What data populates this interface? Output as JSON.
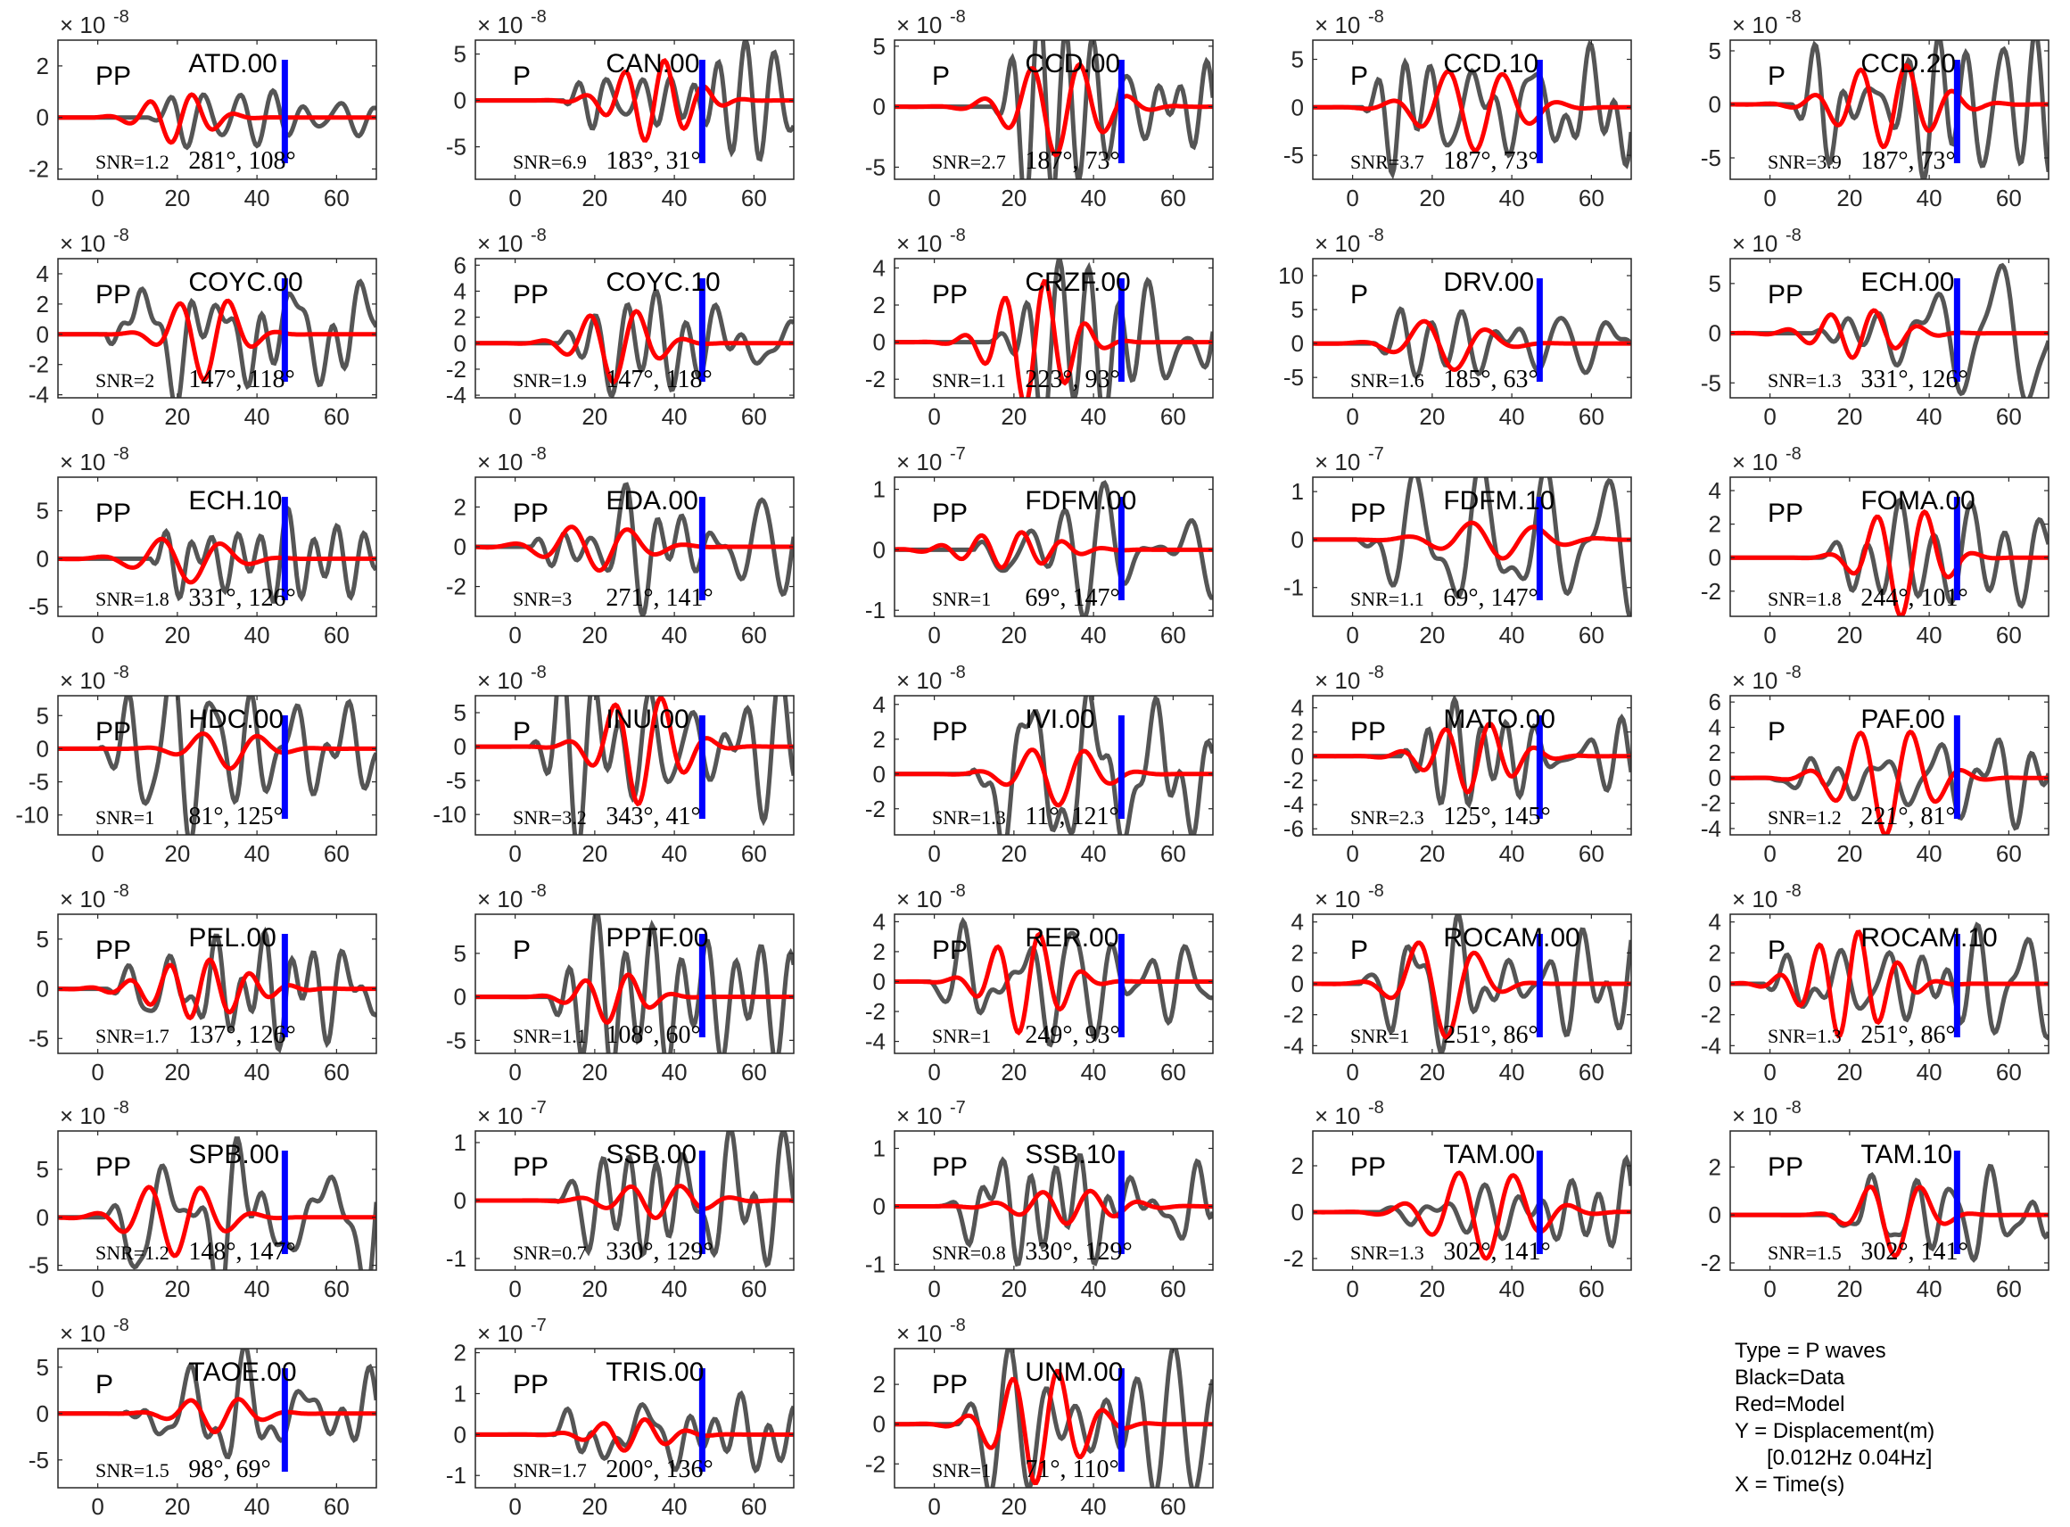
{
  "legend": {
    "type_line": "Type = P waves",
    "black_line": "Black=Data",
    "red_line": "Red=Model",
    "y_line": "Y = Displacement(m)",
    "band_line": "[0.012Hz 0.04Hz]",
    "x_line": "X = Time(s)"
  },
  "colors": {
    "data": "#555555",
    "model": "#ff0000",
    "marker": "#0000ff",
    "axes": "#262626"
  },
  "chart_data": [
    {
      "type": "line",
      "station": "ATD.00",
      "phase": "PP",
      "snr": "SNR=1.2",
      "angles": "281°, 108°",
      "exponent": "-8",
      "yticks": [
        -2,
        0,
        2
      ],
      "ylim": [
        -2.4,
        3.0
      ],
      "xlim": [
        -10,
        70
      ],
      "xticks": [
        0,
        20,
        40,
        60
      ],
      "marker_x": 47,
      "seed": 11,
      "model_amp": 1.0,
      "data_amp": 1.0
    },
    {
      "type": "line",
      "station": "CAN.00",
      "phase": "P",
      "snr": "SNR=6.9",
      "angles": "183°, 31°",
      "exponent": "-8",
      "yticks": [
        -5,
        0,
        5
      ],
      "ylim": [
        -8.5,
        6.5
      ],
      "xlim": [
        -10,
        70
      ],
      "xticks": [
        0,
        20,
        40,
        60
      ],
      "marker_x": 47,
      "seed": 23,
      "model_amp": 4.5,
      "data_amp": 6.5
    },
    {
      "type": "line",
      "station": "CCD.00",
      "phase": "P",
      "snr": "SNR=2.7",
      "angles": "187°, 73°",
      "exponent": "-8",
      "yticks": [
        -5,
        0,
        5
      ],
      "ylim": [
        -6.0,
        5.5
      ],
      "xlim": [
        -10,
        70
      ],
      "xticks": [
        0,
        20,
        40,
        60
      ],
      "marker_x": 47,
      "seed": 37,
      "model_amp": 4.0,
      "data_amp": 5.0
    },
    {
      "type": "line",
      "station": "CCD.10",
      "phase": "P",
      "snr": "SNR=3.7",
      "angles": "187°, 73°",
      "exponent": "-8",
      "yticks": [
        -5,
        0,
        5
      ],
      "ylim": [
        -7.5,
        7.0
      ],
      "xlim": [
        -10,
        70
      ],
      "xticks": [
        0,
        20,
        40,
        60
      ],
      "marker_x": 47,
      "seed": 41,
      "model_amp": 4.5,
      "data_amp": 5.5
    },
    {
      "type": "line",
      "station": "CCD.20",
      "phase": "P",
      "snr": "SNR=3.9",
      "angles": "187°, 73°",
      "exponent": "-8",
      "yticks": [
        -5,
        0,
        5
      ],
      "ylim": [
        -7.0,
        6.0
      ],
      "xlim": [
        -10,
        70
      ],
      "xticks": [
        0,
        20,
        40,
        60
      ],
      "marker_x": 47,
      "seed": 43,
      "model_amp": 4.0,
      "data_amp": 5.0
    },
    {
      "type": "line",
      "station": "COYC.00",
      "phase": "PP",
      "snr": "SNR=2",
      "angles": "147°, 118°",
      "exponent": "-8",
      "yticks": [
        -4,
        -2,
        0,
        2,
        4
      ],
      "ylim": [
        -4.2,
        5.0
      ],
      "xlim": [
        -10,
        70
      ],
      "xticks": [
        0,
        20,
        40,
        60
      ],
      "marker_x": 47,
      "seed": 53,
      "model_amp": 3.0,
      "data_amp": 4.0
    },
    {
      "type": "line",
      "station": "COYC.10",
      "phase": "PP",
      "snr": "SNR=1.9",
      "angles": "147°, 118°",
      "exponent": "-8",
      "yticks": [
        -4,
        -2,
        0,
        2,
        4,
        6
      ],
      "ylim": [
        -4.2,
        6.5
      ],
      "xlim": [
        -10,
        70
      ],
      "xticks": [
        0,
        20,
        40,
        60
      ],
      "marker_x": 47,
      "seed": 59,
      "model_amp": 3.0,
      "data_amp": 4.0
    },
    {
      "type": "line",
      "station": "CRZF.00",
      "phase": "PP",
      "snr": "SNR=1.1",
      "angles": "223°, 93°",
      "exponent": "-8",
      "yticks": [
        -2,
        0,
        2,
        4
      ],
      "ylim": [
        -3.0,
        4.5
      ],
      "xlim": [
        -10,
        70
      ],
      "xticks": [
        0,
        20,
        40,
        60
      ],
      "marker_x": 47,
      "seed": 61,
      "model_amp": 3.5,
      "data_amp": 3.0
    },
    {
      "type": "line",
      "station": "DRV.00",
      "phase": "P",
      "snr": "SNR=1.6",
      "angles": "185°, 63°",
      "exponent": "-8",
      "yticks": [
        -5,
        0,
        5,
        10
      ],
      "ylim": [
        -8.0,
        12.5
      ],
      "xlim": [
        -10,
        70
      ],
      "xticks": [
        0,
        20,
        40,
        60
      ],
      "marker_x": 47,
      "seed": 67,
      "model_amp": 4.0,
      "data_amp": 8.0
    },
    {
      "type": "line",
      "station": "ECH.00",
      "phase": "PP",
      "snr": "SNR=1.3",
      "angles": "331°, 126°",
      "exponent": "-8",
      "yticks": [
        -5,
        0,
        5
      ],
      "ylim": [
        -6.5,
        7.5
      ],
      "xlim": [
        -10,
        70
      ],
      "xticks": [
        0,
        20,
        40,
        60
      ],
      "marker_x": 47,
      "seed": 71,
      "model_amp": 2.5,
      "data_amp": 5.5
    },
    {
      "type": "line",
      "station": "ECH.10",
      "phase": "PP",
      "snr": "SNR=1.8",
      "angles": "331°, 126°",
      "exponent": "-8",
      "yticks": [
        -5,
        0,
        5
      ],
      "ylim": [
        -6.0,
        8.5
      ],
      "xlim": [
        -10,
        70
      ],
      "xticks": [
        0,
        20,
        40,
        60
      ],
      "marker_x": 47,
      "seed": 73,
      "model_amp": 2.5,
      "data_amp": 6.0
    },
    {
      "type": "line",
      "station": "EDA.00",
      "phase": "PP",
      "snr": "SNR=3",
      "angles": "271°, 141°",
      "exponent": "-8",
      "yticks": [
        -2,
        0,
        2
      ],
      "ylim": [
        -3.5,
        3.5
      ],
      "xlim": [
        -10,
        70
      ],
      "xticks": [
        0,
        20,
        40,
        60
      ],
      "marker_x": 47,
      "seed": 79,
      "model_amp": 1.2,
      "data_amp": 2.5
    },
    {
      "type": "line",
      "station": "FDFM.00",
      "phase": "PP",
      "snr": "SNR=1",
      "angles": "69°, 147°",
      "exponent": "-7",
      "yticks": [
        -1,
        0,
        1
      ],
      "ylim": [
        -1.1,
        1.2
      ],
      "xlim": [
        -10,
        70
      ],
      "xticks": [
        0,
        20,
        40,
        60
      ],
      "marker_x": 47,
      "seed": 83,
      "model_amp": 0.3,
      "data_amp": 0.9
    },
    {
      "type": "line",
      "station": "FDFM.10",
      "phase": "PP",
      "snr": "SNR=1.1",
      "angles": "69°, 147°",
      "exponent": "-7",
      "yticks": [
        -1,
        0,
        1
      ],
      "ylim": [
        -1.6,
        1.3
      ],
      "xlim": [
        -10,
        70
      ],
      "xticks": [
        0,
        20,
        40,
        60
      ],
      "marker_x": 47,
      "seed": 89,
      "model_amp": 0.4,
      "data_amp": 1.2
    },
    {
      "type": "line",
      "station": "FOMA.00",
      "phase": "PP",
      "snr": "SNR=1.8",
      "angles": "244°, 101°",
      "exponent": "-8",
      "yticks": [
        -2,
        0,
        2,
        4
      ],
      "ylim": [
        -3.5,
        4.8
      ],
      "xlim": [
        -10,
        70
      ],
      "xticks": [
        0,
        20,
        40,
        60
      ],
      "marker_x": 47,
      "seed": 97,
      "model_amp": 3.5,
      "data_amp": 3.0
    },
    {
      "type": "line",
      "station": "HDC.00",
      "phase": "PP",
      "snr": "SNR=1",
      "angles": "81°, 125°",
      "exponent": "-8",
      "yticks": [
        -10,
        -5,
        0,
        5
      ],
      "ylim": [
        -13.0,
        8.0
      ],
      "xlim": [
        -10,
        70
      ],
      "xticks": [
        0,
        20,
        40,
        60
      ],
      "marker_x": 47,
      "seed": 101,
      "model_amp": 3.0,
      "data_amp": 8.0
    },
    {
      "type": "line",
      "station": "INU.00",
      "phase": "P",
      "snr": "SNR=3.2",
      "angles": "343°, 41°",
      "exponent": "-8",
      "yticks": [
        -10,
        -5,
        0,
        5
      ],
      "ylim": [
        -13.0,
        7.5
      ],
      "xlim": [
        -10,
        70
      ],
      "xticks": [
        0,
        20,
        40,
        60
      ],
      "marker_x": 47,
      "seed": 103,
      "model_amp": 8.5,
      "data_amp": 9.0
    },
    {
      "type": "line",
      "station": "IVI.00",
      "phase": "PP",
      "snr": "SNR=1.3",
      "angles": "11°, 121°",
      "exponent": "-8",
      "yticks": [
        -2,
        0,
        2,
        4
      ],
      "ylim": [
        -3.5,
        4.5
      ],
      "xlim": [
        -10,
        70
      ],
      "xticks": [
        0,
        20,
        40,
        60
      ],
      "marker_x": 47,
      "seed": 107,
      "model_amp": 1.8,
      "data_amp": 3.0
    },
    {
      "type": "line",
      "station": "MATO.00",
      "phase": "PP",
      "snr": "SNR=2.3",
      "angles": "125°, 145°",
      "exponent": "-8",
      "yticks": [
        -6,
        -4,
        -2,
        0,
        2,
        4
      ],
      "ylim": [
        -6.5,
        5.0
      ],
      "xlim": [
        -10,
        70
      ],
      "xticks": [
        0,
        20,
        40,
        60
      ],
      "marker_x": 47,
      "seed": 109,
      "model_amp": 3.0,
      "data_amp": 4.5
    },
    {
      "type": "line",
      "station": "PAF.00",
      "phase": "P",
      "snr": "SNR=1.2",
      "angles": "221°, 81°",
      "exponent": "-8",
      "yticks": [
        -4,
        -2,
        0,
        2,
        4,
        6
      ],
      "ylim": [
        -4.5,
        6.5
      ],
      "xlim": [
        -10,
        70
      ],
      "xticks": [
        0,
        20,
        40,
        60
      ],
      "marker_x": 47,
      "seed": 113,
      "model_amp": 4.5,
      "data_amp": 3.0
    },
    {
      "type": "line",
      "station": "PEL.00",
      "phase": "PP",
      "snr": "SNR=1.7",
      "angles": "137°, 126°",
      "exponent": "-8",
      "yticks": [
        -5,
        0,
        5
      ],
      "ylim": [
        -6.5,
        7.5
      ],
      "xlim": [
        -10,
        70
      ],
      "xticks": [
        0,
        20,
        40,
        60
      ],
      "marker_x": 47,
      "seed": 127,
      "model_amp": 3.0,
      "data_amp": 5.5
    },
    {
      "type": "line",
      "station": "PPTF.00",
      "phase": "P",
      "snr": "SNR=1.1",
      "angles": "108°, 60°",
      "exponent": "-8",
      "yticks": [
        -5,
        0,
        5
      ],
      "ylim": [
        -6.5,
        9.5
      ],
      "xlim": [
        -10,
        70
      ],
      "xticks": [
        0,
        20,
        40,
        60
      ],
      "marker_x": 47,
      "seed": 131,
      "model_amp": 3.0,
      "data_amp": 6.0
    },
    {
      "type": "line",
      "station": "RER.00",
      "phase": "PP",
      "snr": "SNR=1",
      "angles": "249°, 93°",
      "exponent": "-8",
      "yticks": [
        -4,
        -2,
        0,
        2,
        4
      ],
      "ylim": [
        -4.8,
        4.5
      ],
      "xlim": [
        -10,
        70
      ],
      "xticks": [
        0,
        20,
        40,
        60
      ],
      "marker_x": 47,
      "seed": 137,
      "model_amp": 3.5,
      "data_amp": 3.5
    },
    {
      "type": "line",
      "station": "ROCAM.00",
      "phase": "P",
      "snr": "SNR=1",
      "angles": "251°, 86°",
      "exponent": "-8",
      "yticks": [
        -4,
        -2,
        0,
        2,
        4
      ],
      "ylim": [
        -4.5,
        4.5
      ],
      "xlim": [
        -10,
        70
      ],
      "xticks": [
        0,
        20,
        40,
        60
      ],
      "marker_x": 47,
      "seed": 139,
      "model_amp": 3.5,
      "data_amp": 3.0
    },
    {
      "type": "line",
      "station": "ROCAM.10",
      "phase": "P",
      "snr": "SNR=1.3",
      "angles": "251°, 86°",
      "exponent": "-8",
      "yticks": [
        -4,
        -2,
        0,
        2,
        4
      ],
      "ylim": [
        -4.5,
        4.5
      ],
      "xlim": [
        -10,
        70
      ],
      "xticks": [
        0,
        20,
        40,
        60
      ],
      "marker_x": 47,
      "seed": 149,
      "model_amp": 3.5,
      "data_amp": 3.0
    },
    {
      "type": "line",
      "station": "SPB.00",
      "phase": "PP",
      "snr": "SNR=1.2",
      "angles": "148°, 147°",
      "exponent": "-8",
      "yticks": [
        -5,
        0,
        5
      ],
      "ylim": [
        -5.5,
        9.0
      ],
      "xlim": [
        -10,
        70
      ],
      "xticks": [
        0,
        20,
        40,
        60
      ],
      "marker_x": 47,
      "seed": 151,
      "model_amp": 4.0,
      "data_amp": 6.5
    },
    {
      "type": "line",
      "station": "SSB.00",
      "phase": "PP",
      "snr": "SNR=0.7",
      "angles": "330°, 129°",
      "exponent": "-7",
      "yticks": [
        -1,
        0,
        1
      ],
      "ylim": [
        -1.2,
        1.2
      ],
      "xlim": [
        -10,
        70
      ],
      "xticks": [
        0,
        20,
        40,
        60
      ],
      "marker_x": 47,
      "seed": 157,
      "model_amp": 0.3,
      "data_amp": 0.9
    },
    {
      "type": "line",
      "station": "SSB.10",
      "phase": "PP",
      "snr": "SNR=0.8",
      "angles": "330°, 129°",
      "exponent": "-7",
      "yticks": [
        -1,
        0,
        1
      ],
      "ylim": [
        -1.1,
        1.3
      ],
      "xlim": [
        -10,
        70
      ],
      "xticks": [
        0,
        20,
        40,
        60
      ],
      "marker_x": 47,
      "seed": 163,
      "model_amp": 0.3,
      "data_amp": 0.9
    },
    {
      "type": "line",
      "station": "TAM.00",
      "phase": "PP",
      "snr": "SNR=1.3",
      "angles": "302°, 141°",
      "exponent": "-8",
      "yticks": [
        -2,
        0,
        2
      ],
      "ylim": [
        -2.5,
        3.5
      ],
      "xlim": [
        -10,
        70
      ],
      "xticks": [
        0,
        20,
        40,
        60
      ],
      "marker_x": 47,
      "seed": 167,
      "model_amp": 2.0,
      "data_amp": 1.6
    },
    {
      "type": "line",
      "station": "TAM.10",
      "phase": "PP",
      "snr": "SNR=1.5",
      "angles": "302°, 141°",
      "exponent": "-8",
      "yticks": [
        -2,
        0,
        2
      ],
      "ylim": [
        -2.3,
        3.5
      ],
      "xlim": [
        -10,
        70
      ],
      "xticks": [
        0,
        20,
        40,
        60
      ],
      "marker_x": 47,
      "seed": 173,
      "model_amp": 1.7,
      "data_amp": 1.5
    },
    {
      "type": "line",
      "station": "TAOE.00",
      "phase": "P",
      "snr": "SNR=1.5",
      "angles": "98°, 69°",
      "exponent": "-8",
      "yticks": [
        -5,
        0,
        5
      ],
      "ylim": [
        -8.0,
        7.0
      ],
      "xlim": [
        -10,
        70
      ],
      "xticks": [
        0,
        20,
        40,
        60
      ],
      "marker_x": 47,
      "seed": 179,
      "model_amp": 2.0,
      "data_amp": 5.0
    },
    {
      "type": "line",
      "station": "TRIS.00",
      "phase": "PP",
      "snr": "SNR=1.7",
      "angles": "200°, 136°",
      "exponent": "-7",
      "yticks": [
        -1,
        0,
        1,
        2
      ],
      "ylim": [
        -1.3,
        2.1
      ],
      "xlim": [
        -10,
        70
      ],
      "xticks": [
        0,
        20,
        40,
        60
      ],
      "marker_x": 47,
      "seed": 181,
      "model_amp": 0.4,
      "data_amp": 1.2
    },
    {
      "type": "line",
      "station": "UNM.00",
      "phase": "PP",
      "snr": "SNR=1",
      "angles": "71°, 110°",
      "exponent": "-8",
      "yticks": [
        -2,
        0,
        2
      ],
      "ylim": [
        -3.2,
        3.8
      ],
      "xlim": [
        -10,
        70
      ],
      "xticks": [
        0,
        20,
        40,
        60
      ],
      "marker_x": 47,
      "seed": 191,
      "model_amp": 3.0,
      "data_amp": 3.0
    }
  ]
}
